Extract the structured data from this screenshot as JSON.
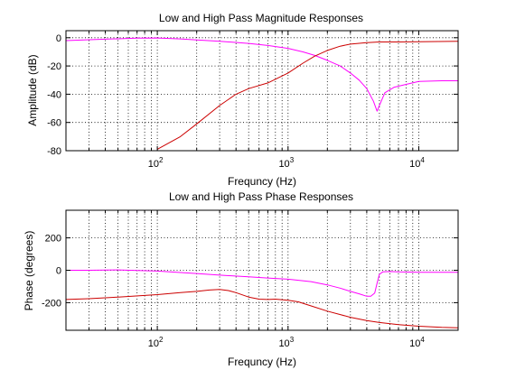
{
  "chart_data": [
    {
      "type": "line",
      "title": "Low and High Pass Magnitude Responses",
      "xlabel": "Frequncy (Hz)",
      "ylabel": "Amplitude (dB)",
      "xscale": "log",
      "xlim": [
        20,
        20000
      ],
      "ylim": [
        -80,
        5
      ],
      "yticks": [
        0,
        -20,
        -40,
        -60,
        -80
      ],
      "xticks": [
        {
          "value": 100,
          "base": "10",
          "exp": "2"
        },
        {
          "value": 1000,
          "base": "10",
          "exp": "3"
        },
        {
          "value": 10000,
          "base": "10",
          "exp": "4"
        }
      ],
      "grid": true,
      "series": [
        {
          "color": "#ff00ff",
          "x": [
            20,
            40,
            70,
            100,
            150,
            200,
            300,
            500,
            700,
            1000,
            1300,
            1600,
            2000,
            2500,
            3000,
            3500,
            4000,
            4500,
            4800,
            5000,
            5500,
            6500,
            8000,
            10000,
            15000,
            20000
          ],
          "y": [
            -2,
            -1,
            -0.3,
            -0.2,
            -0.8,
            -1.5,
            -2.5,
            -4,
            -5.5,
            -7.5,
            -10,
            -12.5,
            -16,
            -20,
            -25,
            -30,
            -36,
            -45,
            -52,
            -48,
            -39,
            -35,
            -33,
            -31,
            -30.5,
            -30.5
          ]
        },
        {
          "color": "#cc0000",
          "x": [
            100,
            150,
            200,
            300,
            400,
            500,
            700,
            1000,
            1300,
            1600,
            2000,
            2500,
            3000,
            4000,
            5000,
            7000,
            10000,
            20000
          ],
          "y": [
            -79,
            -70,
            -61,
            -48,
            -40,
            -36,
            -32,
            -25,
            -18,
            -13,
            -9,
            -6,
            -4.5,
            -3.5,
            -3,
            -3,
            -2.8,
            -2.5
          ]
        }
      ]
    },
    {
      "type": "line",
      "title": "Low and High Pass Phase Responses",
      "xlabel": "Frequncy (Hz)",
      "ylabel": "Phase (degrees)",
      "xscale": "log",
      "xlim": [
        20,
        20000
      ],
      "ylim": [
        -370,
        370
      ],
      "yticks": [
        200,
        0,
        -200
      ],
      "xticks": [
        {
          "value": 100,
          "base": "10",
          "exp": "2"
        },
        {
          "value": 1000,
          "base": "10",
          "exp": "3"
        },
        {
          "value": 10000,
          "base": "10",
          "exp": "4"
        }
      ],
      "grid": true,
      "series": [
        {
          "color": "#ff00ff",
          "x": [
            20,
            30,
            50,
            100,
            200,
            300,
            500,
            700,
            1000,
            1500,
            2000,
            2500,
            3000,
            3500,
            4000,
            4300,
            4600,
            4800,
            5000,
            5300,
            6000,
            7000,
            10000,
            15000,
            20000
          ],
          "y": [
            0,
            0,
            2,
            -5,
            -20,
            -30,
            -40,
            -48,
            -55,
            -70,
            -90,
            -110,
            -130,
            -145,
            -160,
            -160,
            -140,
            -80,
            -25,
            -10,
            -8,
            -10,
            -12,
            -12,
            -12
          ]
        },
        {
          "color": "#cc0000",
          "x": [
            20,
            30,
            50,
            100,
            150,
            200,
            250,
            300,
            350,
            400,
            500,
            600,
            700,
            800,
            1000,
            1200,
            1500,
            2000,
            3000,
            4000,
            5000,
            7000,
            10000,
            15000,
            20000
          ],
          "y": [
            -180,
            -175,
            -165,
            -150,
            -138,
            -130,
            -122,
            -118,
            -125,
            -138,
            -165,
            -178,
            -180,
            -178,
            -185,
            -195,
            -220,
            -252,
            -290,
            -310,
            -322,
            -335,
            -345,
            -352,
            -355
          ]
        }
      ]
    }
  ]
}
